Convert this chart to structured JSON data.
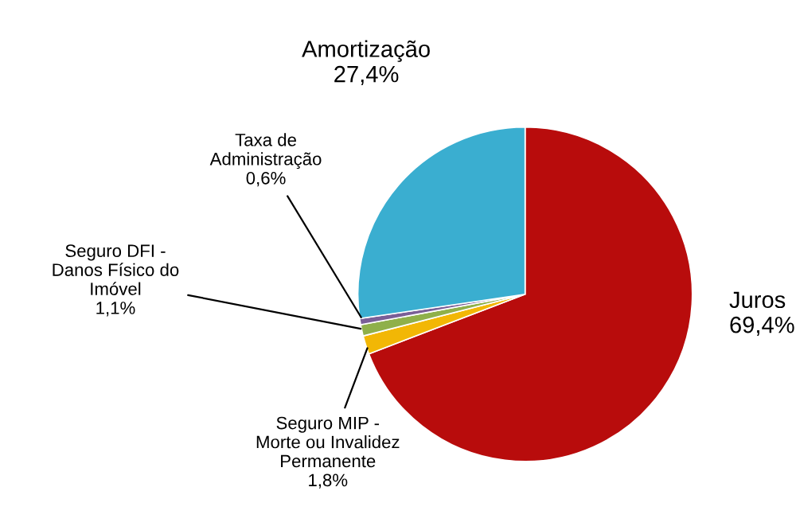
{
  "chart_data": {
    "type": "pie",
    "categories": [
      "Juros",
      "Seguro MIP -\nMorte ou Invalidez\nPermanente",
      "Seguro DFI -\nDanos Físico do\nImóvel",
      "Taxa de\nAdministração",
      "Amortização"
    ],
    "values": [
      69.4,
      1.8,
      1.1,
      0.6,
      27.4
    ],
    "value_labels": [
      "69,4%",
      "1,8%",
      "1,1%",
      "0,6%",
      "27,4%"
    ],
    "colors": [
      "#b80c0c",
      "#f2b705",
      "#8fb04a",
      "#7a5f97",
      "#3aaed0"
    ],
    "legend": false
  }
}
